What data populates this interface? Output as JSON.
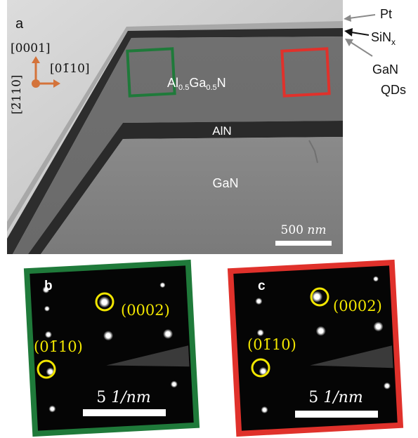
{
  "panels": {
    "a": {
      "label": "a",
      "layers": {
        "top": "Al",
        "top_sub1": "0.5",
        "top_mid": "Ga",
        "top_sub2": "0.5",
        "top_end": "N",
        "middle": "AlN",
        "bottom": "GaN"
      },
      "axes": {
        "vertical": "[0001]",
        "horizontal": "[01̄10]",
        "depth": "[2̄110]"
      },
      "annotations": {
        "pt": "Pt",
        "sin": "SiN",
        "sin_sub": "x",
        "qd_line1": "GaN",
        "qd_line2": "QDs"
      },
      "scalebar": {
        "value": "500",
        "unit": "nm"
      },
      "region_colors": {
        "green": "#1f7a3a",
        "red": "#e0312b"
      }
    },
    "b": {
      "label": "b",
      "frame_color": "#1f7a3a",
      "spot1": "(0002)",
      "spot2": "(01̄10)",
      "scalebar": {
        "value": "5",
        "unit": "1/nm"
      }
    },
    "c": {
      "label": "c",
      "frame_color": "#e0312b",
      "spot1": "(0002)",
      "spot2": "(01̄10)",
      "scalebar": {
        "value": "5",
        "unit": "1/nm"
      }
    }
  },
  "colors": {
    "highlight": "#f2e600",
    "arrow": "#d4733a"
  }
}
